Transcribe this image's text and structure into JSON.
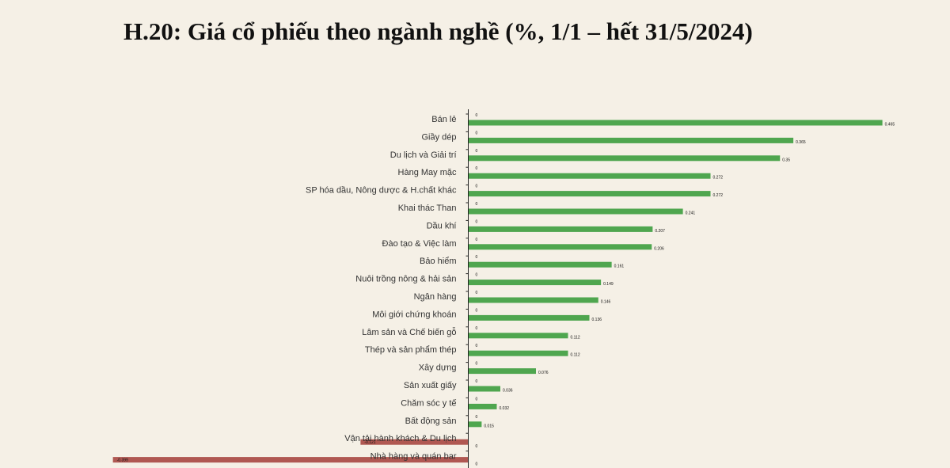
{
  "chart_data": {
    "type": "bar",
    "orientation": "horizontal",
    "title": "H.20: Giá cổ phiếu theo ngành nghề (%, 1/1 – hết 31/5/2024)",
    "categories": [
      "Bán lẻ",
      "Giầy dép",
      "Du lịch và Giải trí",
      "Hàng May mặc",
      "SP hóa dầu, Nông dược & H.chất khác",
      "Khai thác Than",
      "Dầu khí",
      "Đào tạo & Việc làm",
      "Bảo hiểm",
      "Nuôi trồng nông & hải sản",
      "Ngân hàng",
      "Môi giới chứng khoán",
      "Lâm sản và Chế biến gỗ",
      "Thép và sản phẩm thép",
      "Xây dựng",
      "Sản xuất giấy",
      "Chăm sóc y tế",
      "Bất động sản",
      "Vận tải hành khách & Du lịch",
      "Nhà hàng và quán bar"
    ],
    "values": [
      0.465,
      0.365,
      0.35,
      0.272,
      0.272,
      0.241,
      0.207,
      0.206,
      0.161,
      0.149,
      0.146,
      0.136,
      0.112,
      0.112,
      0.076,
      0.036,
      0.032,
      0.015,
      -0.121,
      -0.399
    ],
    "value_labels": [
      "0.465",
      "0.365",
      "0.35",
      "0.272",
      "0.272",
      "0.241",
      "0.207",
      "0.206",
      "0.161",
      "0.149",
      "0.146",
      "0.136",
      "0.112",
      "0.112",
      "0.076",
      "0.036",
      "0.032",
      "0.015",
      "-0.121",
      "-0.399"
    ],
    "zero_label": "0",
    "colors": {
      "positive": "#4fa64f",
      "negative": "#b05852"
    }
  }
}
